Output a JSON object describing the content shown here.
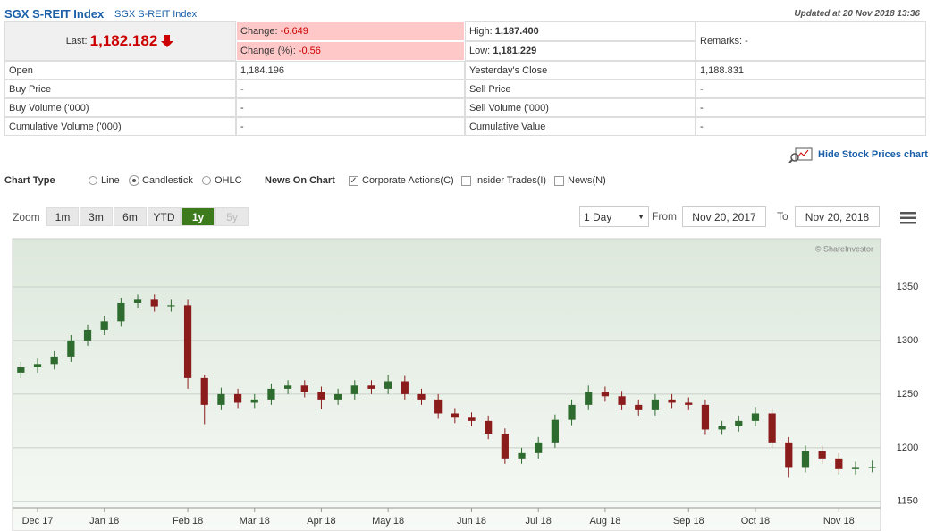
{
  "header": {
    "title": "SGX S-REIT Index",
    "subtitle": "SGX S-REIT Index",
    "updated": "Updated at 20 Nov 2018 13:36"
  },
  "quote": {
    "last_label": "Last:",
    "last": "1,182.182",
    "change": {
      "label": "Change:",
      "value": "-6.649"
    },
    "change_pct": {
      "label": "Change (%):",
      "value": "-0.56"
    },
    "high": {
      "label": "High:",
      "value": "1,187.400"
    },
    "low": {
      "label": "Low:",
      "value": "1,181.229"
    },
    "remarks": "Remarks: -"
  },
  "table": {
    "rows": [
      [
        "Open",
        "1,184.196",
        "Yesterday's Close",
        "1,188.831"
      ],
      [
        "Buy Price",
        "-",
        "Sell Price",
        "-"
      ],
      [
        "Buy Volume ('000)",
        "-",
        "Sell Volume ('000)",
        "-"
      ],
      [
        "Cumulative Volume ('000)",
        "-",
        "Cumulative Value",
        "-"
      ]
    ]
  },
  "controls": {
    "hide_link": "Hide Stock Prices chart",
    "chart_type_label": "Chart Type",
    "chart_types": [
      "Line",
      "Candlestick",
      "OHLC"
    ],
    "news_label": "News On Chart",
    "news_options": [
      "Corporate Actions(C)",
      "Insider Trades(I)",
      "News(N)"
    ],
    "zoom_label": "Zoom",
    "zoom": [
      "1m",
      "3m",
      "6m",
      "YTD",
      "1y",
      "5y"
    ],
    "interval": "1 Day",
    "from_label": "From",
    "from": "Nov 20, 2017",
    "to_label": "To",
    "to": "Nov 20, 2018"
  },
  "chart_data": {
    "type": "candlestick",
    "credit": "© ShareInvestor",
    "categories": [
      null,
      "Dec 17",
      null,
      null,
      null,
      "Jan 18",
      null,
      null,
      null,
      null,
      "Feb 18",
      null,
      null,
      null,
      "Mar 18",
      null,
      null,
      null,
      "Apr 18",
      null,
      null,
      null,
      "May 18",
      null,
      null,
      null,
      null,
      "Jun 18",
      null,
      null,
      null,
      "Jul 18",
      null,
      null,
      null,
      "Aug 18",
      null,
      null,
      null,
      null,
      "Sep 18",
      null,
      null,
      null,
      "Oct 18",
      null,
      null,
      null,
      null,
      "Nov 18",
      null,
      null
    ],
    "open": [
      1270,
      1275,
      1278,
      1285,
      1300,
      1310,
      1318,
      1335,
      1338,
      1332,
      1333,
      1265,
      1240,
      1250,
      1242,
      1245,
      1255,
      1258,
      1252,
      1245,
      1250,
      1258,
      1255,
      1262,
      1250,
      1245,
      1232,
      1228,
      1225,
      1213,
      1190,
      1195,
      1205,
      1226,
      1240,
      1252,
      1248,
      1240,
      1235,
      1245,
      1242,
      1240,
      1217,
      1220,
      1225,
      1232,
      1205,
      1182,
      1197,
      1190,
      1180,
      1182
    ],
    "high": [
      1280,
      1283,
      1290,
      1305,
      1315,
      1323,
      1340,
      1343,
      1343,
      1338,
      1338,
      1268,
      1256,
      1255,
      1250,
      1260,
      1263,
      1263,
      1257,
      1255,
      1263,
      1263,
      1268,
      1267,
      1255,
      1250,
      1237,
      1233,
      1230,
      1218,
      1200,
      1210,
      1231,
      1245,
      1258,
      1257,
      1253,
      1245,
      1250,
      1250,
      1247,
      1245,
      1225,
      1230,
      1238,
      1237,
      1210,
      1202,
      1202,
      1195,
      1187,
      1188
    ],
    "low": [
      1265,
      1270,
      1273,
      1280,
      1295,
      1305,
      1313,
      1330,
      1327,
      1327,
      1255,
      1222,
      1235,
      1237,
      1237,
      1240,
      1250,
      1247,
      1236,
      1240,
      1245,
      1250,
      1250,
      1245,
      1240,
      1227,
      1223,
      1220,
      1208,
      1185,
      1185,
      1190,
      1200,
      1221,
      1235,
      1243,
      1235,
      1230,
      1230,
      1237,
      1235,
      1212,
      1212,
      1215,
      1220,
      1200,
      1172,
      1177,
      1185,
      1175,
      1175,
      1177
    ],
    "close": [
      1275,
      1278,
      1285,
      1300,
      1310,
      1318,
      1335,
      1338,
      1332,
      1333,
      1265,
      1240,
      1250,
      1242,
      1245,
      1255,
      1258,
      1252,
      1245,
      1250,
      1258,
      1255,
      1262,
      1250,
      1245,
      1232,
      1228,
      1225,
      1213,
      1190,
      1195,
      1205,
      1226,
      1240,
      1252,
      1248,
      1240,
      1235,
      1245,
      1242,
      1240,
      1217,
      1220,
      1225,
      1232,
      1205,
      1182,
      1197,
      1190,
      1180,
      1182,
      1182
    ],
    "up_color": "#2e6b2e",
    "down_color": "#8b1c1c",
    "ylim": [
      1144,
      1395
    ],
    "yticks": [
      1150,
      1200,
      1250,
      1300,
      1350
    ],
    "grid": true
  }
}
